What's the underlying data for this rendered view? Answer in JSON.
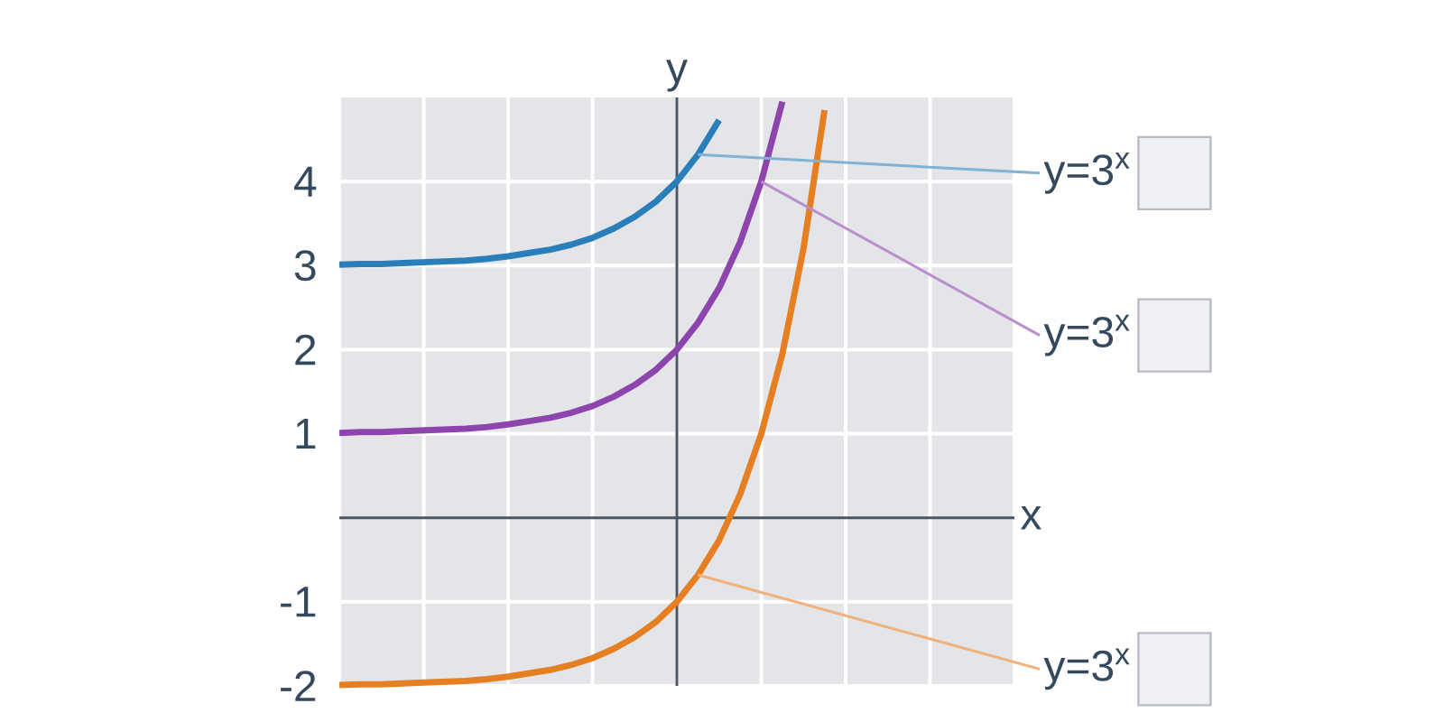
{
  "chart_data": {
    "type": "line",
    "xlabel": "x",
    "ylabel": "y",
    "categories": [
      null,
      null,
      null,
      null,
      null,
      null,
      null,
      null,
      null,
      null,
      null,
      null,
      null,
      null,
      null,
      null,
      null,
      null,
      null,
      null,
      null,
      null,
      null,
      null,
      null,
      null,
      null,
      null,
      null,
      null,
      null,
      null,
      null
    ],
    "ylim": [
      -2,
      5
    ],
    "yticks": [
      -2,
      -1,
      1,
      2,
      3,
      4
    ],
    "tick_labels": "y",
    "grid": true,
    "series": [
      {
        "color": "#2a7fba",
        "values": [
          3.01,
          3.02,
          3.02,
          3.03,
          3.04,
          3.05,
          3.06,
          3.08,
          3.11,
          3.15,
          3.19,
          3.25,
          3.33,
          3.44,
          3.58,
          3.76,
          4,
          4.32,
          4.73,
          null,
          null,
          null,
          null,
          null,
          null,
          null,
          null,
          null,
          null,
          null,
          null,
          null,
          null
        ]
      },
      {
        "color": "#8e44ad",
        "values": [
          1.01,
          1.02,
          1.02,
          1.03,
          1.04,
          1.05,
          1.06,
          1.08,
          1.11,
          1.15,
          1.19,
          1.25,
          1.33,
          1.44,
          1.58,
          1.76,
          2,
          2.32,
          2.73,
          3.28,
          4,
          4.95,
          null,
          null,
          null,
          null,
          null,
          null,
          null,
          null,
          null,
          null,
          null
        ]
      },
      {
        "color": "#e67e22",
        "values": [
          -1.99,
          -1.98,
          -1.98,
          -1.97,
          -1.96,
          -1.95,
          -1.94,
          -1.92,
          -1.89,
          -1.85,
          -1.81,
          -1.75,
          -1.67,
          -1.56,
          -1.42,
          -1.24,
          -1,
          -0.68,
          -0.27,
          0.28,
          1,
          1.95,
          3.2,
          4.85,
          null,
          null,
          null,
          null,
          null,
          null,
          null,
          null,
          null
        ]
      }
    ],
    "annotations": [
      "y=3$^{x}$",
      "y=3$^{x}$",
      "y=3$^{x}$"
    ]
  }
}
